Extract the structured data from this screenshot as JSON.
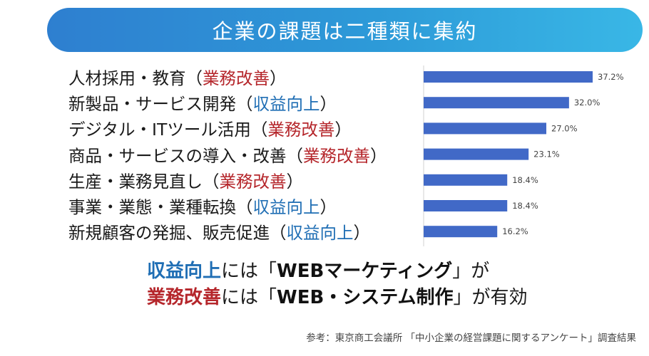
{
  "header": {
    "title": "企業の課題は二種類に集約"
  },
  "tags": {
    "improvement": {
      "text": "業務改善",
      "color": "#b5262b"
    },
    "revenue": {
      "text": "収益向上",
      "color": "#1f6eb4"
    }
  },
  "rows": [
    {
      "label": "人材採用・教育",
      "tag_text": "業務改善",
      "tag_type": "improvement"
    },
    {
      "label": "新製品・サービス開発",
      "tag_text": "収益向上",
      "tag_type": "revenue"
    },
    {
      "label": "デジタル・ITツール活用",
      "tag_text": "業務改善",
      "tag_type": "improvement"
    },
    {
      "label": "商品・サービスの導入・改善",
      "tag_text": "業務改善",
      "tag_type": "improvement"
    },
    {
      "label": "生産・業務見直し",
      "tag_text": "業務改善",
      "tag_type": "improvement"
    },
    {
      "label": "事業・業態・業種転換",
      "tag_text": "収益向上",
      "tag_type": "revenue"
    },
    {
      "label": "新規顧客の発掘、販売促進",
      "tag_text": "収益向上",
      "tag_type": "revenue"
    }
  ],
  "chart_data": {
    "type": "bar",
    "orientation": "horizontal",
    "categories": [
      "人材採用・教育",
      "新製品・サービス開発",
      "デジタル・ITツール活用",
      "商品・サービスの導入・改善",
      "生産・業務見直し",
      "事業・業態・業種転換",
      "新規顧客の発掘、販売促進"
    ],
    "values": [
      37.2,
      32.0,
      27.0,
      23.1,
      18.4,
      18.4,
      16.2
    ],
    "value_labels": [
      "37.2%",
      "32.0%",
      "27.0%",
      "23.1%",
      "18.4%",
      "18.4%",
      "16.2%"
    ],
    "xlim": [
      0,
      37.2
    ],
    "bar_color": "#4169c7",
    "grid": false
  },
  "summary": {
    "line1": {
      "highlight": "収益向上",
      "text1": "には「",
      "bold": "WEBマーケティング",
      "text2": "」が"
    },
    "line2": {
      "highlight": "業務改善",
      "text1": "には「",
      "bold": "WEB・システム制作",
      "text2": "」が有効"
    }
  },
  "source": "参考：東京商工会議所 「中小企業の経営課題に関するアンケート」調査結果"
}
